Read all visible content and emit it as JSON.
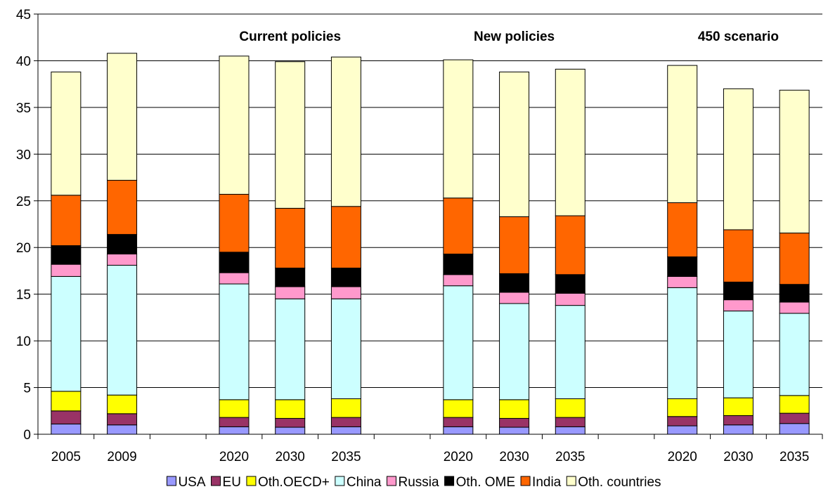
{
  "chart_data": {
    "type": "bar",
    "stacked": true,
    "categories": [
      "2005",
      "2009",
      "",
      "2020",
      "2030",
      "2035",
      "",
      "2020",
      "2030",
      "2035",
      "",
      "2020",
      "2030",
      "2035"
    ],
    "group_labels": [
      {
        "label": "Current policies",
        "center_index": 4
      },
      {
        "label": "New policies",
        "center_index": 8
      },
      {
        "label": "450 scenario",
        "center_index": 12
      }
    ],
    "ylim": [
      0,
      45
    ],
    "yticks": [
      0,
      5,
      10,
      15,
      20,
      25,
      30,
      35,
      40,
      45
    ],
    "grid": true,
    "legend_position": "bottom",
    "series": [
      {
        "name": "USA",
        "color": "#9999FF",
        "values": [
          1.1,
          1.0,
          null,
          0.8,
          0.75,
          0.8,
          null,
          0.8,
          0.75,
          0.8,
          null,
          0.9,
          1.0,
          1.15
        ]
      },
      {
        "name": "EU",
        "color": "#993366",
        "values": [
          1.4,
          1.2,
          null,
          1.0,
          0.95,
          1.0,
          null,
          1.0,
          0.95,
          1.0,
          null,
          1.0,
          1.0,
          1.1
        ]
      },
      {
        "name": "Oth.OECD+",
        "color": "#FFFF00",
        "values": [
          2.1,
          2.0,
          null,
          1.9,
          2.0,
          2.0,
          null,
          1.9,
          2.0,
          2.0,
          null,
          1.9,
          1.9,
          1.9
        ]
      },
      {
        "name": "China",
        "color": "#CCFFFF",
        "values": [
          12.3,
          13.9,
          null,
          12.4,
          10.8,
          10.7,
          null,
          12.2,
          10.3,
          10.0,
          null,
          11.9,
          9.3,
          8.8
        ]
      },
      {
        "name": "Russia",
        "color": "#FF99CC",
        "values": [
          1.3,
          1.2,
          null,
          1.2,
          1.3,
          1.3,
          null,
          1.2,
          1.2,
          1.3,
          null,
          1.2,
          1.2,
          1.2
        ]
      },
      {
        "name": "Oth. OME",
        "color": "#000000",
        "values": [
          2.0,
          2.1,
          null,
          2.2,
          2.0,
          2.0,
          null,
          2.2,
          2.0,
          2.0,
          null,
          2.1,
          1.9,
          1.9
        ]
      },
      {
        "name": "India",
        "color": "#FF6600",
        "values": [
          5.4,
          5.8,
          null,
          6.2,
          6.4,
          6.6,
          null,
          6.0,
          6.1,
          6.3,
          null,
          5.8,
          5.6,
          5.5
        ]
      },
      {
        "name": "Oth. countries",
        "color": "#FFFFCC",
        "values": [
          13.2,
          13.6,
          null,
          14.8,
          15.7,
          16.0,
          null,
          14.8,
          15.5,
          15.7,
          null,
          14.7,
          15.1,
          15.3
        ]
      }
    ]
  }
}
